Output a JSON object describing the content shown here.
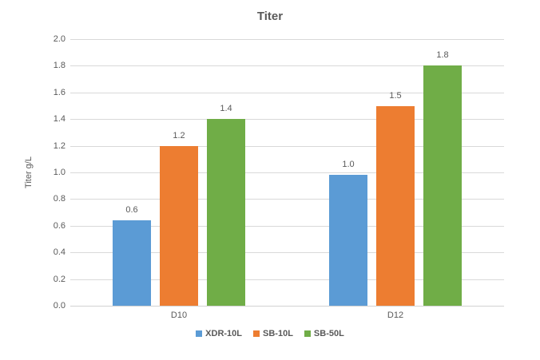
{
  "chart_data": {
    "type": "bar",
    "title": "Titer",
    "ylabel": "Titer g/L",
    "xlabel": "",
    "categories": [
      "D10",
      "D12"
    ],
    "series": [
      {
        "name": "XDR-10L",
        "color": "#5B9BD5",
        "values": [
          0.64,
          0.98
        ],
        "data_labels": [
          "0.6",
          "1.0"
        ]
      },
      {
        "name": "SB-10L",
        "color": "#ED7D31",
        "values": [
          1.2,
          1.5
        ],
        "data_labels": [
          "1.2",
          "1.5"
        ]
      },
      {
        "name": "SB-50L",
        "color": "#70AD47",
        "values": [
          1.4,
          1.8
        ],
        "data_labels": [
          "1.4",
          "1.8"
        ]
      }
    ],
    "ylim": [
      0.0,
      2.0
    ],
    "ytick_step": 0.2,
    "ytick_labels": [
      "0.0",
      "0.2",
      "0.4",
      "0.6",
      "0.8",
      "1.0",
      "1.2",
      "1.4",
      "1.6",
      "1.8",
      "2.0"
    ],
    "grid": true,
    "legend_position": "bottom",
    "colors": {
      "gridline": "#D9D9D9",
      "axis_line": "#D2D2D2",
      "text": "#595959",
      "background": "#FFFFFF"
    }
  }
}
